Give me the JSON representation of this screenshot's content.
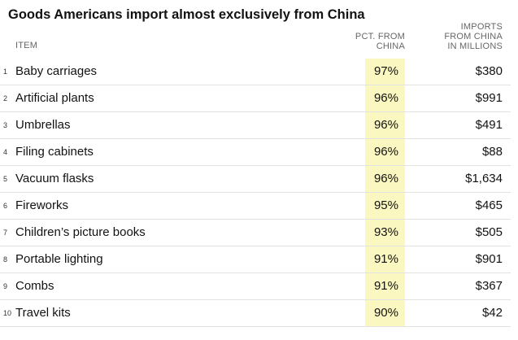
{
  "title": "Goods Americans import almost exclusively from China",
  "colors": {
    "highlight": "#fbf7c0",
    "divider": "#e2e2e2",
    "header_text": "#666666"
  },
  "chart_data": {
    "type": "table",
    "title": "Goods Americans import almost exclusively from China",
    "columns": [
      {
        "key": "item",
        "label": "ITEM"
      },
      {
        "key": "pct",
        "label": "PCT. FROM CHINA"
      },
      {
        "key": "imports",
        "label": "IMPORTS FROM CHINA IN MILLIONS"
      }
    ],
    "header": {
      "item": "ITEM",
      "pct_line1": "PCT. FROM",
      "pct_line2": "CHINA",
      "imp_line1": "IMPORTS",
      "imp_line2": "FROM CHINA",
      "imp_line3": "IN MILLIONS"
    },
    "rows": [
      {
        "rank": "1",
        "item": "Baby carriages",
        "pct": "97%",
        "imports": "$380",
        "pct_value": 97,
        "imports_value": 380
      },
      {
        "rank": "2",
        "item": "Artificial plants",
        "pct": "96%",
        "imports": "$991",
        "pct_value": 96,
        "imports_value": 991
      },
      {
        "rank": "3",
        "item": "Umbrellas",
        "pct": "96%",
        "imports": "$491",
        "pct_value": 96,
        "imports_value": 491
      },
      {
        "rank": "4",
        "item": "Filing cabinets",
        "pct": "96%",
        "imports": "$88",
        "pct_value": 96,
        "imports_value": 88
      },
      {
        "rank": "5",
        "item": "Vacuum flasks",
        "pct": "96%",
        "imports": "$1,634",
        "pct_value": 96,
        "imports_value": 1634
      },
      {
        "rank": "6",
        "item": "Fireworks",
        "pct": "95%",
        "imports": "$465",
        "pct_value": 95,
        "imports_value": 465
      },
      {
        "rank": "7",
        "item": "Children’s picture books",
        "pct": "93%",
        "imports": "$505",
        "pct_value": 93,
        "imports_value": 505
      },
      {
        "rank": "8",
        "item": "Portable lighting",
        "pct": "91%",
        "imports": "$901",
        "pct_value": 91,
        "imports_value": 901
      },
      {
        "rank": "9",
        "item": "Combs",
        "pct": "91%",
        "imports": "$367",
        "pct_value": 91,
        "imports_value": 367
      },
      {
        "rank": "10",
        "item": "Travel kits",
        "pct": "90%",
        "imports": "$42",
        "pct_value": 90,
        "imports_value": 42
      }
    ]
  }
}
